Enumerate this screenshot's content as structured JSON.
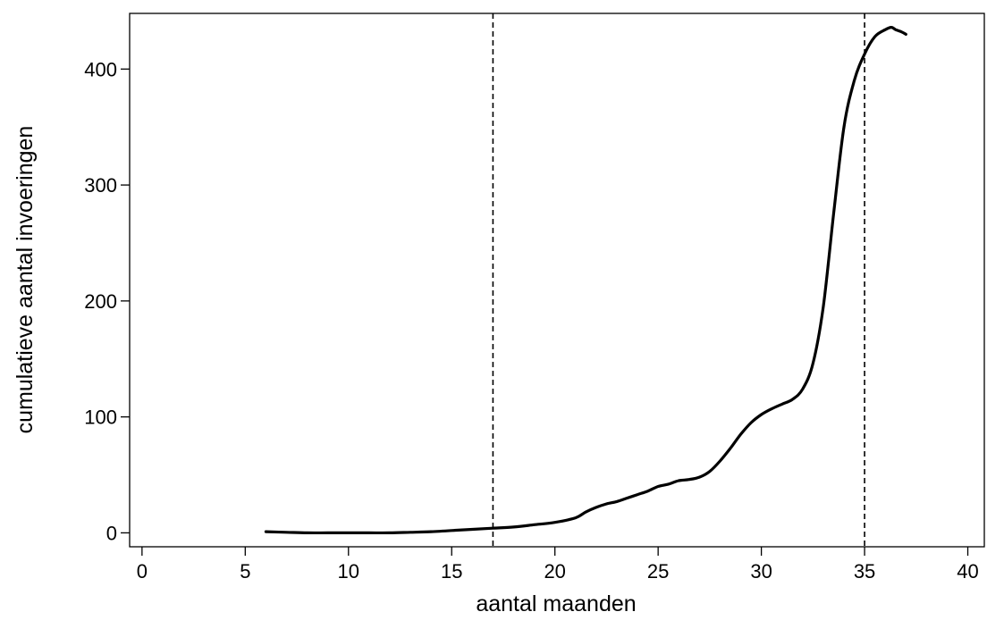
{
  "chart_data": {
    "type": "line",
    "title": "",
    "xlabel": "aantal maanden",
    "ylabel": "cumulatieve aantal invoeringen",
    "xlim": [
      -0.6,
      40.8
    ],
    "ylim": [
      -12,
      448
    ],
    "x_ticks": [
      0,
      5,
      10,
      15,
      20,
      25,
      30,
      35,
      40
    ],
    "x_tick_labels": [
      "0",
      "5",
      "10",
      "15",
      "20",
      "25",
      "30",
      "35",
      "40"
    ],
    "y_ticks": [
      0,
      100,
      200,
      300,
      400
    ],
    "y_tick_labels": [
      "0",
      "100",
      "200",
      "300",
      "400"
    ],
    "grid": false,
    "legend": "none",
    "reference_lines": [
      {
        "axis": "x",
        "value": 17,
        "style": "dashed"
      },
      {
        "axis": "x",
        "value": 35,
        "style": "dashed"
      }
    ],
    "series": [
      {
        "color": "#000000",
        "x": [
          6,
          7,
          8,
          9,
          10,
          11,
          12,
          13,
          14,
          15,
          16,
          17,
          18,
          19,
          20,
          21,
          21.5,
          22,
          22.5,
          23,
          23.5,
          24,
          24.5,
          25,
          25.5,
          26,
          26.5,
          27,
          27.5,
          28,
          28.5,
          29,
          29.5,
          30,
          30.5,
          31,
          31.5,
          32,
          32.5,
          33,
          33.5,
          34,
          34.5,
          35,
          35.5,
          36,
          36.3,
          36.5,
          36.8,
          37
        ],
        "y": [
          1,
          0.5,
          0,
          0,
          0,
          0,
          0,
          0.5,
          1,
          2,
          3,
          4,
          5,
          7,
          9,
          13,
          18,
          22,
          25,
          27,
          30,
          33,
          36,
          40,
          42,
          45,
          46,
          48,
          53,
          62,
          73,
          85,
          95,
          102,
          107,
          111,
          115,
          124,
          146,
          195,
          275,
          350,
          390,
          413,
          428,
          434,
          436,
          434,
          432,
          430
        ]
      }
    ]
  }
}
